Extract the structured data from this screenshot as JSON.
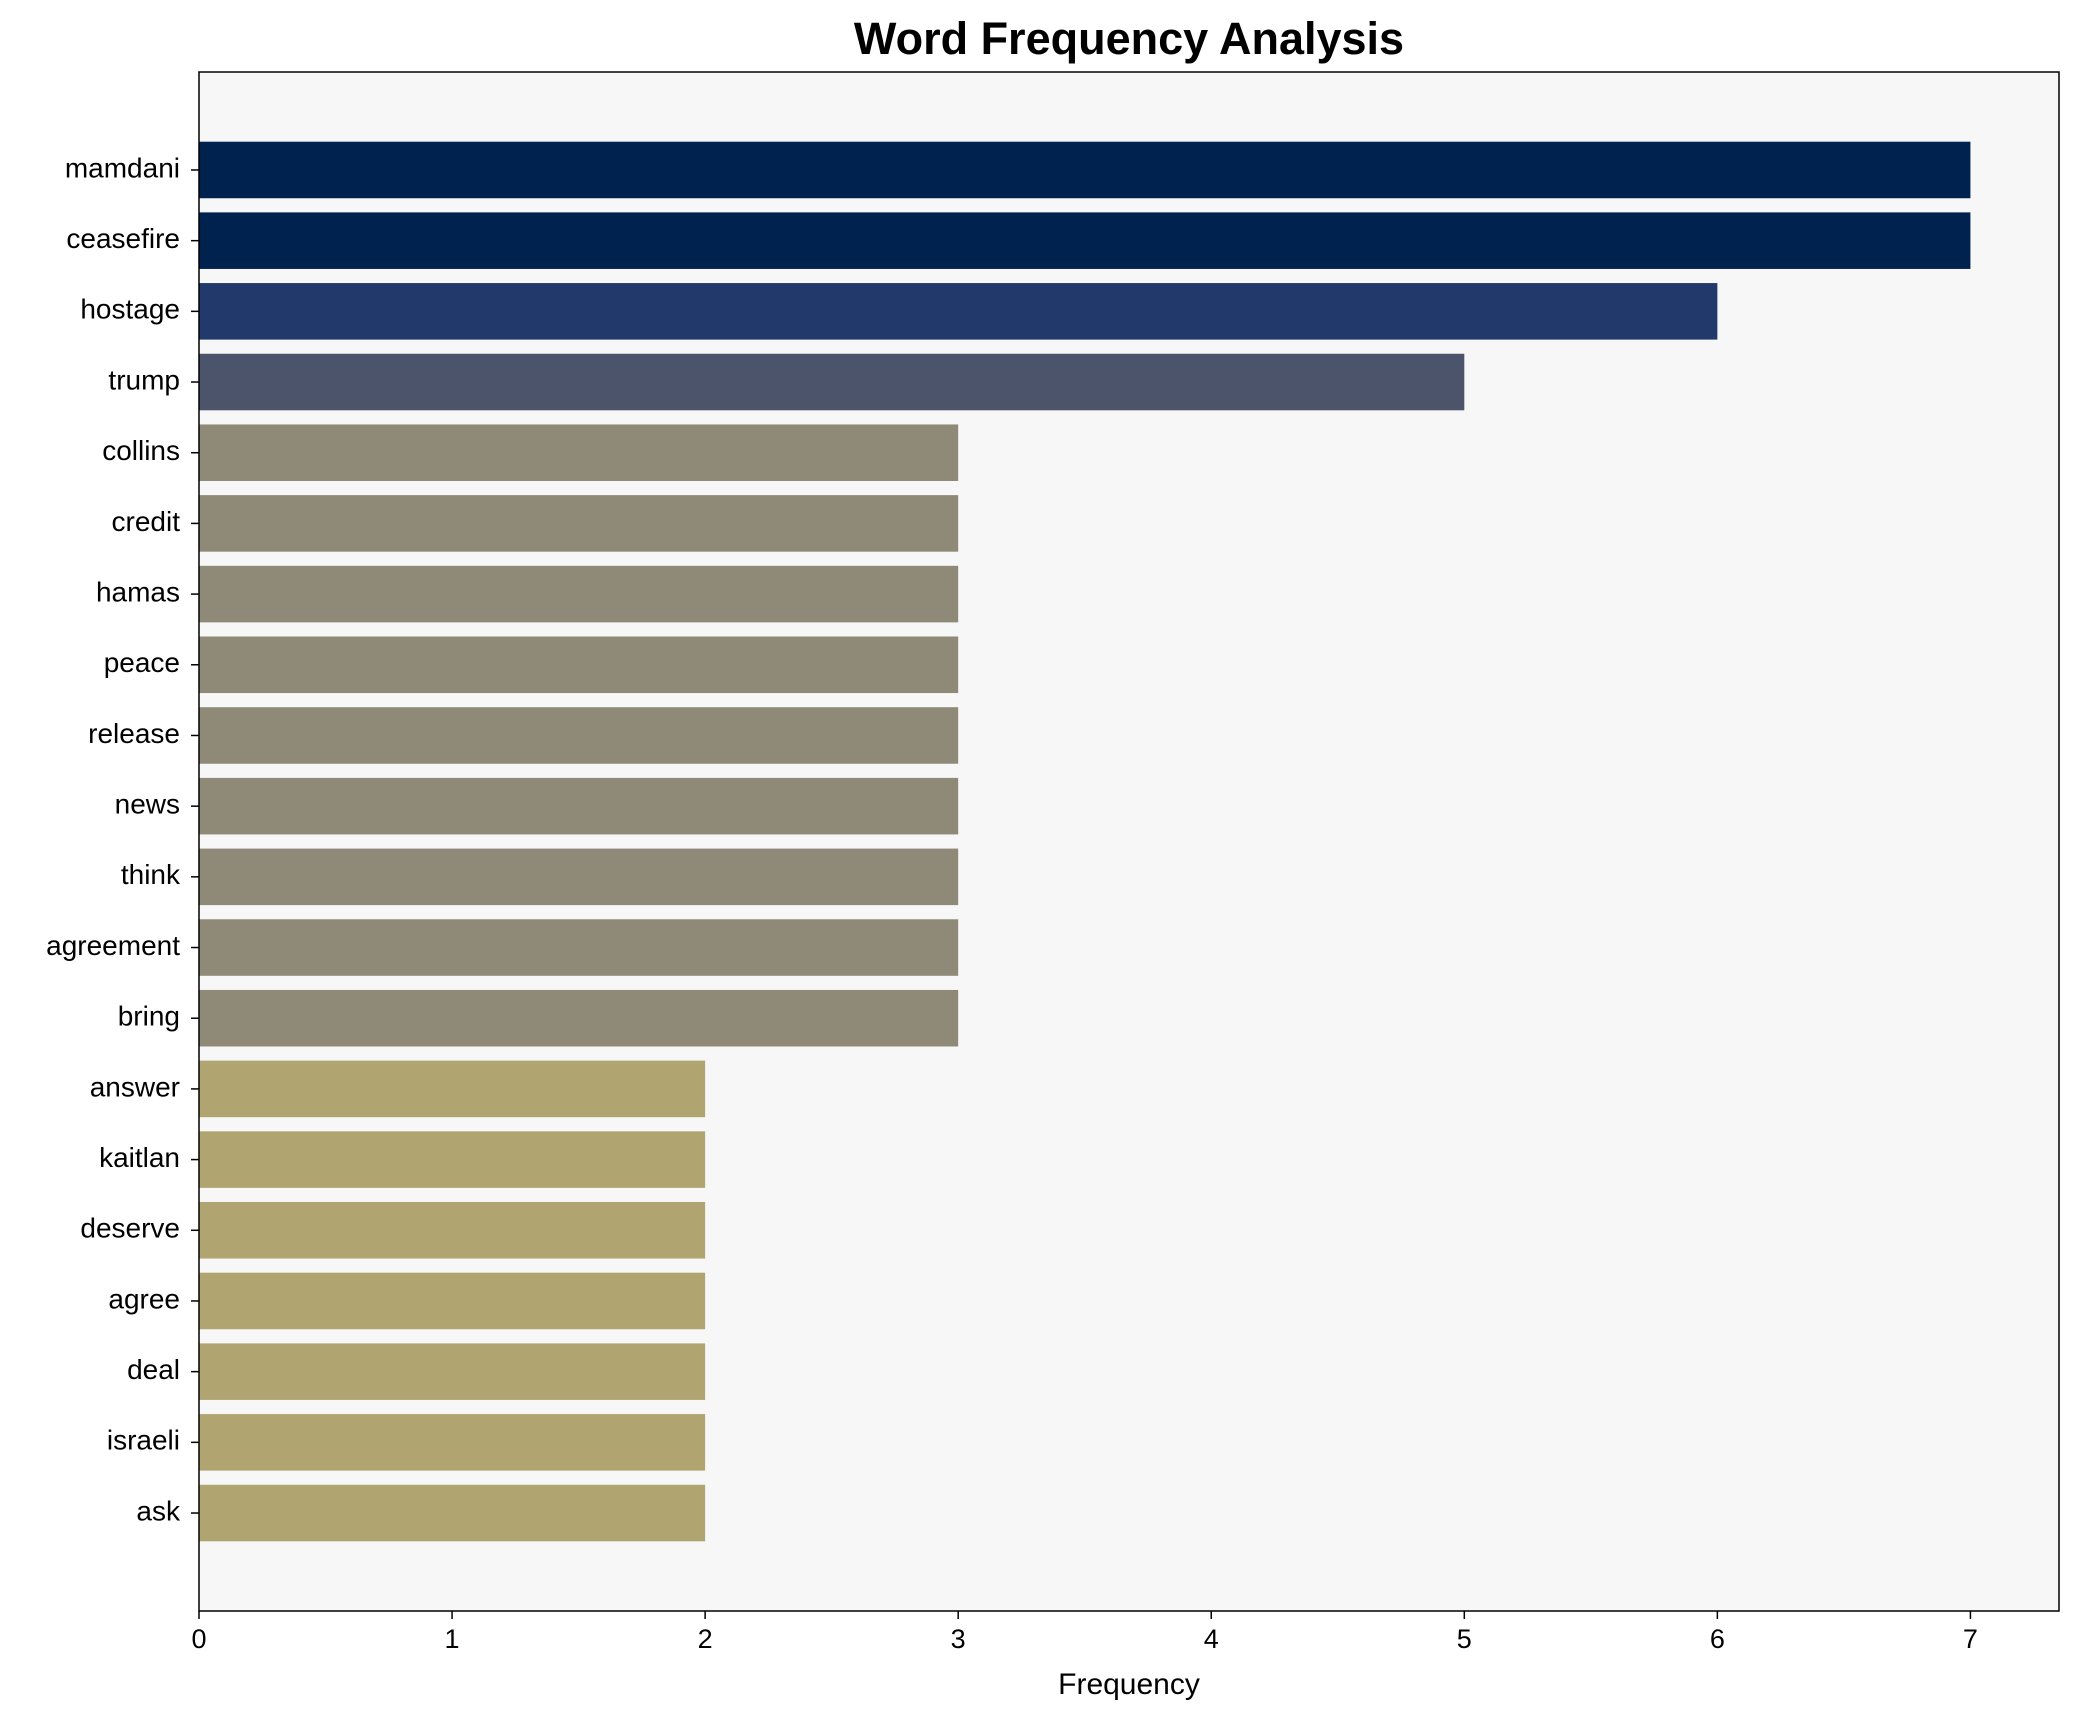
{
  "chart_data": {
    "type": "barh",
    "title": "Word Frequency Analysis",
    "x_label": "Frequency",
    "categories": [
      "mamdani",
      "ceasefire",
      "hostage",
      "trump",
      "collins",
      "credit",
      "hamas",
      "peace",
      "release",
      "news",
      "think",
      "agreement",
      "bring",
      "answer",
      "kaitlan",
      "deserve",
      "agree",
      "deal",
      "israeli",
      "ask"
    ],
    "values": [
      7,
      7,
      6,
      5,
      3,
      3,
      3,
      3,
      3,
      3,
      3,
      3,
      3,
      2,
      2,
      2,
      2,
      2,
      2,
      2
    ],
    "colors": [
      "#00224e",
      "#00224e",
      "#213a6b",
      "#4c546c",
      "#8f8a78",
      "#8f8a78",
      "#8f8a78",
      "#8f8a78",
      "#8f8a78",
      "#8f8a78",
      "#8f8a78",
      "#8f8a78",
      "#8f8a78",
      "#b0a570",
      "#b0a570",
      "#b0a570",
      "#b0a570",
      "#b0a570",
      "#b0a570",
      "#b0a570"
    ],
    "xlim": [
      0,
      7.35
    ],
    "xticks": [
      0,
      1,
      2,
      3,
      4,
      5,
      6,
      7
    ],
    "grid": false,
    "background": "#f7f7f7"
  }
}
